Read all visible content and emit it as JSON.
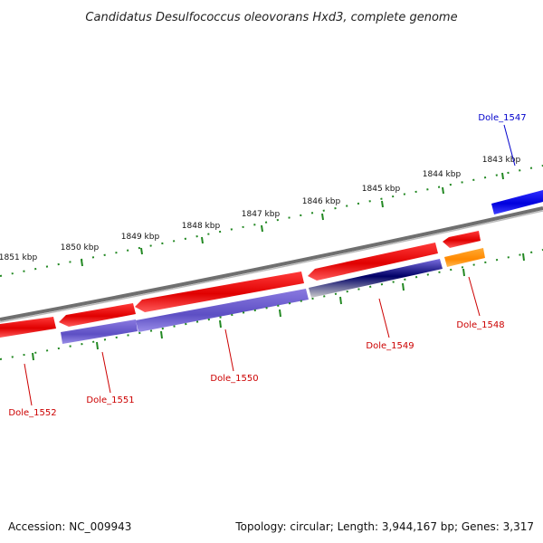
{
  "title": "Candidatus Desulfococcus oleovorans Hxd3, complete genome",
  "footer": {
    "accession": "Accession: NC_009943",
    "summary": "Topology: circular; Length: 3,944,167 bp; Genes: 3,317"
  },
  "ticks": [
    {
      "label": "1851 kbp"
    },
    {
      "label": "1850 kbp"
    },
    {
      "label": "1849 kbp"
    },
    {
      "label": "1848 kbp"
    },
    {
      "label": "1847 kbp"
    },
    {
      "label": "1846 kbp"
    },
    {
      "label": "1845 kbp"
    },
    {
      "label": "1844 kbp"
    },
    {
      "label": "1843 kbp"
    }
  ],
  "genes": [
    {
      "name": "Dole_1547",
      "color": "#0000cc",
      "strand": "forward"
    },
    {
      "name": "Dole_1548",
      "color": "#cc0000",
      "strand": "reverse"
    },
    {
      "name": "Dole_1549",
      "color": "#cc0000",
      "strand": "reverse"
    },
    {
      "name": "Dole_1550",
      "color": "#cc0000",
      "strand": "reverse"
    },
    {
      "name": "Dole_1551",
      "color": "#cc0000",
      "strand": "reverse"
    },
    {
      "name": "Dole_1552",
      "color": "#cc0000",
      "strand": "reverse"
    }
  ],
  "colors": {
    "cds_red": "#ee1111",
    "cds_blue": "#1111ee",
    "rna_orange": "#ff8800",
    "protein_purple": "#6655cc",
    "tick_green": "#228822",
    "backbone": "#777777"
  }
}
